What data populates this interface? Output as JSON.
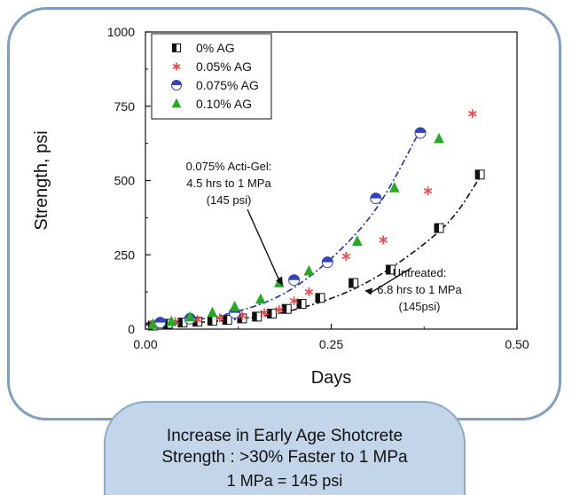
{
  "caption": {
    "line1": "Increase in Early Age Shotcrete",
    "line2": "Strength :  >30% Faster to 1 MPa",
    "line3": "1 MPa = 145 psi"
  },
  "chart_data": {
    "type": "scatter",
    "xlabel": "Days",
    "ylabel": "Strength, psi",
    "xlim": [
      0,
      0.5
    ],
    "ylim": [
      0,
      1000
    ],
    "x_ticks": [
      0,
      0.25,
      0.5
    ],
    "x_tick_labels": [
      "0.00",
      "0.25",
      "0.50"
    ],
    "y_ticks": [
      0,
      250,
      500,
      750,
      1000
    ],
    "y_tick_labels": [
      "0",
      "250",
      "500",
      "750",
      "1000"
    ],
    "grid": false,
    "legend_position": "top-left",
    "series": [
      {
        "name": "0% AG",
        "marker": "square-half",
        "color": "#111111",
        "points": [
          [
            0.01,
            12
          ],
          [
            0.03,
            18
          ],
          [
            0.05,
            22
          ],
          [
            0.07,
            25
          ],
          [
            0.09,
            28
          ],
          [
            0.11,
            31
          ],
          [
            0.13,
            36
          ],
          [
            0.15,
            42
          ],
          [
            0.17,
            52
          ],
          [
            0.19,
            68
          ],
          [
            0.21,
            85
          ],
          [
            0.235,
            105
          ],
          [
            0.28,
            155
          ],
          [
            0.33,
            200
          ],
          [
            0.395,
            340
          ],
          [
            0.45,
            520
          ]
        ]
      },
      {
        "name": "0.05% AG",
        "marker": "asterisk",
        "color": "#e84848",
        "points": [
          [
            0.01,
            20
          ],
          [
            0.04,
            25
          ],
          [
            0.07,
            32
          ],
          [
            0.1,
            38
          ],
          [
            0.13,
            45
          ],
          [
            0.16,
            55
          ],
          [
            0.18,
            65
          ],
          [
            0.2,
            95
          ],
          [
            0.22,
            125
          ],
          [
            0.27,
            245
          ],
          [
            0.32,
            300
          ],
          [
            0.38,
            465
          ],
          [
            0.44,
            725
          ]
        ]
      },
      {
        "name": "0.075% AG",
        "marker": "circle-half",
        "color": "#3344bb",
        "points": [
          [
            0.02,
            22
          ],
          [
            0.06,
            35
          ],
          [
            0.12,
            55
          ],
          [
            0.2,
            165
          ],
          [
            0.245,
            225
          ],
          [
            0.31,
            440
          ],
          [
            0.37,
            660
          ]
        ]
      },
      {
        "name": "0.10% AG",
        "marker": "triangle-half",
        "color": "#22aa22",
        "points": [
          [
            0.01,
            15
          ],
          [
            0.035,
            25
          ],
          [
            0.06,
            40
          ],
          [
            0.09,
            55
          ],
          [
            0.12,
            75
          ],
          [
            0.155,
            100
          ],
          [
            0.18,
            155
          ],
          [
            0.22,
            195
          ],
          [
            0.285,
            295
          ],
          [
            0.335,
            475
          ],
          [
            0.395,
            640
          ]
        ]
      }
    ],
    "fits": [
      {
        "series": "0% AG",
        "style": "dash-dot",
        "color": "#111111",
        "points": [
          [
            0,
            15
          ],
          [
            0.1,
            28
          ],
          [
            0.2,
            65
          ],
          [
            0.3,
            160
          ],
          [
            0.4,
            340
          ],
          [
            0.45,
            510
          ]
        ]
      },
      {
        "series": "0.075% AG",
        "style": "dash-dot",
        "color": "#2233aa",
        "points": [
          [
            0,
            20
          ],
          [
            0.1,
            45
          ],
          [
            0.2,
            140
          ],
          [
            0.3,
            370
          ],
          [
            0.37,
            670
          ]
        ]
      }
    ],
    "annotations": [
      {
        "id": "ag",
        "lines": [
          "0.075% Acti-Gel:",
          "4.5 hrs to 1 MPa",
          "(145 psi)"
        ],
        "arrow_to": [
          0.185,
          145
        ]
      },
      {
        "id": "untreated",
        "lines": [
          "Untreated:",
          "6.8 hrs to 1 MPa",
          "(145psi)"
        ],
        "arrow_to": [
          0.295,
          130
        ]
      }
    ]
  }
}
